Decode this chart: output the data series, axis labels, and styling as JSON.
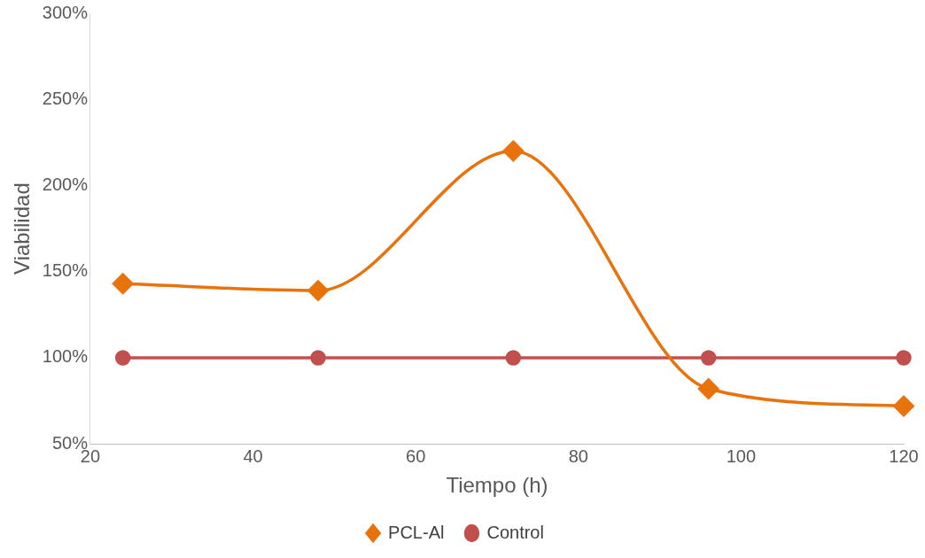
{
  "chart_data": {
    "type": "line",
    "xlabel": "Tiempo (h)",
    "ylabel": "Viabilidad",
    "x": [
      24,
      48,
      72,
      96,
      120
    ],
    "series": [
      {
        "name": "PCL-Al",
        "color": "#e8720c",
        "values": [
          143,
          139,
          220,
          82,
          72
        ],
        "marker": "diamond"
      },
      {
        "name": "Control",
        "color": "#c0504d",
        "values": [
          100,
          100,
          100,
          100,
          100
        ],
        "marker": "circle"
      }
    ],
    "xlim": [
      20,
      120
    ],
    "xticks": [
      20,
      40,
      60,
      80,
      100,
      120
    ],
    "ylim": [
      50,
      300
    ],
    "yticks": [
      {
        "value": 50,
        "label": "50%"
      },
      {
        "value": 100,
        "label": "100%"
      },
      {
        "value": 150,
        "label": "150%"
      },
      {
        "value": 200,
        "label": "200%"
      },
      {
        "value": 250,
        "label": "250%"
      },
      {
        "value": 300,
        "label": "300%"
      }
    ],
    "grid": false,
    "legend": "bottom",
    "line_style": "solid"
  }
}
